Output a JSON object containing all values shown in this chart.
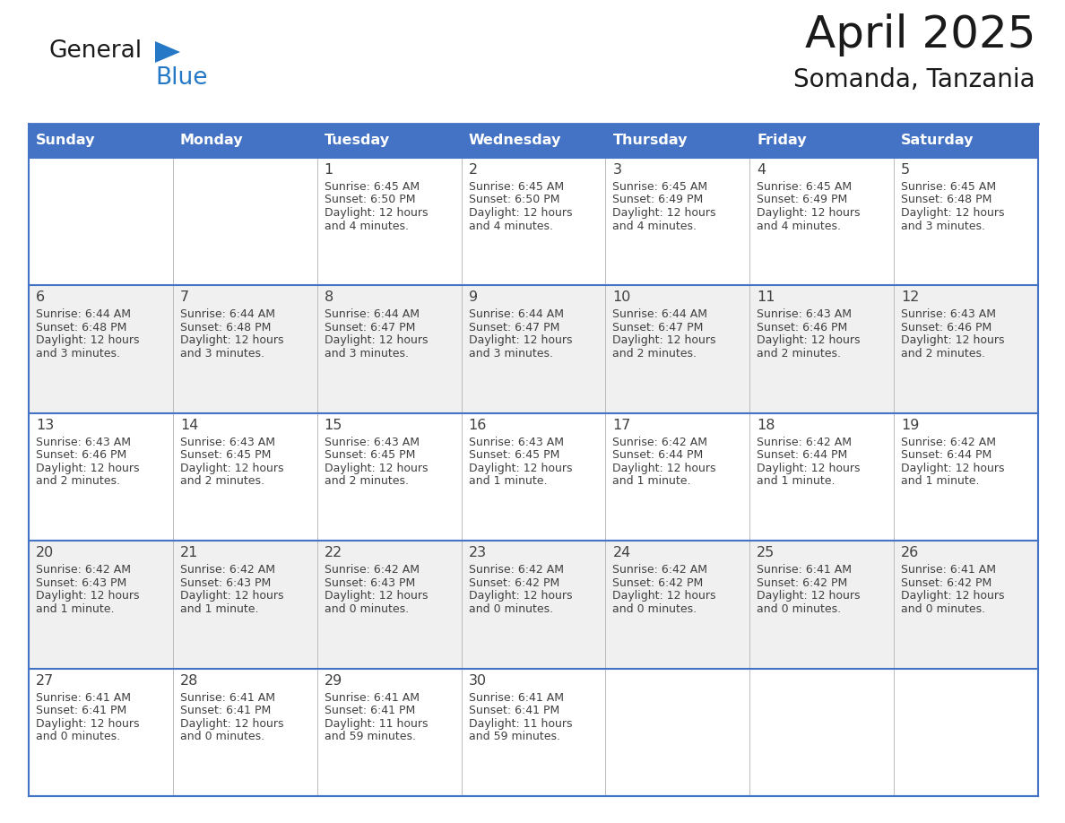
{
  "title": "April 2025",
  "subtitle": "Somanda, Tanzania",
  "header_bg": "#4472C4",
  "header_fg": "#FFFFFF",
  "border_color": "#4472C4",
  "row_sep_color": "#4472C4",
  "cell_bg_odd": "#FFFFFF",
  "cell_bg_even": "#F0F0F0",
  "text_color": "#404040",
  "logo_dark": "#1a1a1a",
  "logo_blue": "#2478C5",
  "days_of_week": [
    "Sunday",
    "Monday",
    "Tuesday",
    "Wednesday",
    "Thursday",
    "Friday",
    "Saturday"
  ],
  "calendar_data": [
    [
      {
        "day": "",
        "sunrise": "",
        "sunset": "",
        "daylight_line1": "",
        "daylight_line2": ""
      },
      {
        "day": "",
        "sunrise": "",
        "sunset": "",
        "daylight_line1": "",
        "daylight_line2": ""
      },
      {
        "day": "1",
        "sunrise": "6:45 AM",
        "sunset": "6:50 PM",
        "daylight_line1": "12 hours",
        "daylight_line2": "and 4 minutes."
      },
      {
        "day": "2",
        "sunrise": "6:45 AM",
        "sunset": "6:50 PM",
        "daylight_line1": "12 hours",
        "daylight_line2": "and 4 minutes."
      },
      {
        "day": "3",
        "sunrise": "6:45 AM",
        "sunset": "6:49 PM",
        "daylight_line1": "12 hours",
        "daylight_line2": "and 4 minutes."
      },
      {
        "day": "4",
        "sunrise": "6:45 AM",
        "sunset": "6:49 PM",
        "daylight_line1": "12 hours",
        "daylight_line2": "and 4 minutes."
      },
      {
        "day": "5",
        "sunrise": "6:45 AM",
        "sunset": "6:48 PM",
        "daylight_line1": "12 hours",
        "daylight_line2": "and 3 minutes."
      }
    ],
    [
      {
        "day": "6",
        "sunrise": "6:44 AM",
        "sunset": "6:48 PM",
        "daylight_line1": "12 hours",
        "daylight_line2": "and 3 minutes."
      },
      {
        "day": "7",
        "sunrise": "6:44 AM",
        "sunset": "6:48 PM",
        "daylight_line1": "12 hours",
        "daylight_line2": "and 3 minutes."
      },
      {
        "day": "8",
        "sunrise": "6:44 AM",
        "sunset": "6:47 PM",
        "daylight_line1": "12 hours",
        "daylight_line2": "and 3 minutes."
      },
      {
        "day": "9",
        "sunrise": "6:44 AM",
        "sunset": "6:47 PM",
        "daylight_line1": "12 hours",
        "daylight_line2": "and 3 minutes."
      },
      {
        "day": "10",
        "sunrise": "6:44 AM",
        "sunset": "6:47 PM",
        "daylight_line1": "12 hours",
        "daylight_line2": "and 2 minutes."
      },
      {
        "day": "11",
        "sunrise": "6:43 AM",
        "sunset": "6:46 PM",
        "daylight_line1": "12 hours",
        "daylight_line2": "and 2 minutes."
      },
      {
        "day": "12",
        "sunrise": "6:43 AM",
        "sunset": "6:46 PM",
        "daylight_line1": "12 hours",
        "daylight_line2": "and 2 minutes."
      }
    ],
    [
      {
        "day": "13",
        "sunrise": "6:43 AM",
        "sunset": "6:46 PM",
        "daylight_line1": "12 hours",
        "daylight_line2": "and 2 minutes."
      },
      {
        "day": "14",
        "sunrise": "6:43 AM",
        "sunset": "6:45 PM",
        "daylight_line1": "12 hours",
        "daylight_line2": "and 2 minutes."
      },
      {
        "day": "15",
        "sunrise": "6:43 AM",
        "sunset": "6:45 PM",
        "daylight_line1": "12 hours",
        "daylight_line2": "and 2 minutes."
      },
      {
        "day": "16",
        "sunrise": "6:43 AM",
        "sunset": "6:45 PM",
        "daylight_line1": "12 hours",
        "daylight_line2": "and 1 minute."
      },
      {
        "day": "17",
        "sunrise": "6:42 AM",
        "sunset": "6:44 PM",
        "daylight_line1": "12 hours",
        "daylight_line2": "and 1 minute."
      },
      {
        "day": "18",
        "sunrise": "6:42 AM",
        "sunset": "6:44 PM",
        "daylight_line1": "12 hours",
        "daylight_line2": "and 1 minute."
      },
      {
        "day": "19",
        "sunrise": "6:42 AM",
        "sunset": "6:44 PM",
        "daylight_line1": "12 hours",
        "daylight_line2": "and 1 minute."
      }
    ],
    [
      {
        "day": "20",
        "sunrise": "6:42 AM",
        "sunset": "6:43 PM",
        "daylight_line1": "12 hours",
        "daylight_line2": "and 1 minute."
      },
      {
        "day": "21",
        "sunrise": "6:42 AM",
        "sunset": "6:43 PM",
        "daylight_line1": "12 hours",
        "daylight_line2": "and 1 minute."
      },
      {
        "day": "22",
        "sunrise": "6:42 AM",
        "sunset": "6:43 PM",
        "daylight_line1": "12 hours",
        "daylight_line2": "and 0 minutes."
      },
      {
        "day": "23",
        "sunrise": "6:42 AM",
        "sunset": "6:42 PM",
        "daylight_line1": "12 hours",
        "daylight_line2": "and 0 minutes."
      },
      {
        "day": "24",
        "sunrise": "6:42 AM",
        "sunset": "6:42 PM",
        "daylight_line1": "12 hours",
        "daylight_line2": "and 0 minutes."
      },
      {
        "day": "25",
        "sunrise": "6:41 AM",
        "sunset": "6:42 PM",
        "daylight_line1": "12 hours",
        "daylight_line2": "and 0 minutes."
      },
      {
        "day": "26",
        "sunrise": "6:41 AM",
        "sunset": "6:42 PM",
        "daylight_line1": "12 hours",
        "daylight_line2": "and 0 minutes."
      }
    ],
    [
      {
        "day": "27",
        "sunrise": "6:41 AM",
        "sunset": "6:41 PM",
        "daylight_line1": "12 hours",
        "daylight_line2": "and 0 minutes."
      },
      {
        "day": "28",
        "sunrise": "6:41 AM",
        "sunset": "6:41 PM",
        "daylight_line1": "12 hours",
        "daylight_line2": "and 0 minutes."
      },
      {
        "day": "29",
        "sunrise": "6:41 AM",
        "sunset": "6:41 PM",
        "daylight_line1": "11 hours",
        "daylight_line2": "and 59 minutes."
      },
      {
        "day": "30",
        "sunrise": "6:41 AM",
        "sunset": "6:41 PM",
        "daylight_line1": "11 hours",
        "daylight_line2": "and 59 minutes."
      },
      {
        "day": "",
        "sunrise": "",
        "sunset": "",
        "daylight_line1": "",
        "daylight_line2": ""
      },
      {
        "day": "",
        "sunrise": "",
        "sunset": "",
        "daylight_line1": "",
        "daylight_line2": ""
      },
      {
        "day": "",
        "sunrise": "",
        "sunset": "",
        "daylight_line1": "",
        "daylight_line2": ""
      }
    ]
  ]
}
